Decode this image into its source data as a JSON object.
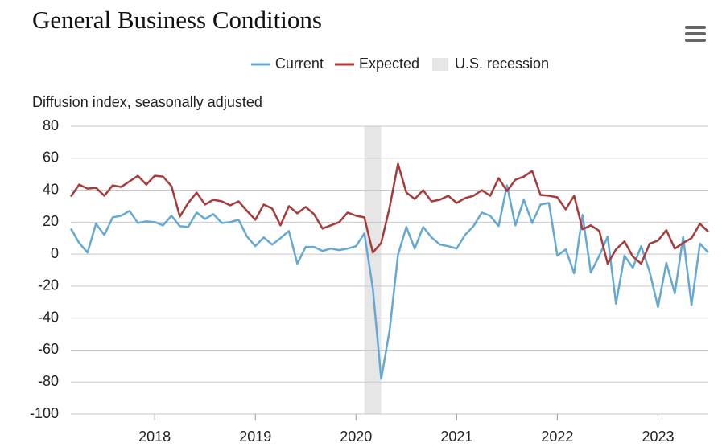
{
  "chart_data": {
    "type": "line",
    "title": "General Business Conditions",
    "y_label": "Diffusion index, seasonally adjusted",
    "x": [
      2017.167,
      2017.25,
      2017.333,
      2017.417,
      2017.5,
      2017.583,
      2017.667,
      2017.75,
      2017.833,
      2017.917,
      2018.0,
      2018.083,
      2018.167,
      2018.25,
      2018.333,
      2018.417,
      2018.5,
      2018.583,
      2018.667,
      2018.75,
      2018.833,
      2018.917,
      2019.0,
      2019.083,
      2019.167,
      2019.25,
      2019.333,
      2019.417,
      2019.5,
      2019.583,
      2019.667,
      2019.75,
      2019.833,
      2019.917,
      2020.0,
      2020.083,
      2020.167,
      2020.25,
      2020.333,
      2020.417,
      2020.5,
      2020.583,
      2020.667,
      2020.75,
      2020.833,
      2020.917,
      2021.0,
      2021.083,
      2021.167,
      2021.25,
      2021.333,
      2021.417,
      2021.5,
      2021.583,
      2021.667,
      2021.75,
      2021.833,
      2021.917,
      2022.0,
      2022.083,
      2022.167,
      2022.25,
      2022.333,
      2022.417,
      2022.5,
      2022.583,
      2022.667,
      2022.75,
      2022.833,
      2022.917,
      2023.0,
      2023.083,
      2023.167,
      2023.25,
      2023.333,
      2023.417,
      2023.5
    ],
    "series": [
      {
        "name": "Current",
        "color": "#64a9d4",
        "values": [
          16,
          7,
          1,
          19,
          12,
          23,
          24,
          27,
          19.5,
          20.5,
          20,
          18,
          24,
          17.5,
          17,
          26,
          22,
          25,
          19.5,
          20,
          21.5,
          11,
          5,
          10.5,
          6,
          10,
          14.5,
          -6,
          4.5,
          4.5,
          2,
          3.5,
          2.5,
          3.5,
          5,
          13,
          -21.5,
          -78,
          -48,
          -0.5,
          17,
          3.5,
          17,
          10.5,
          6,
          5,
          3.5,
          12,
          17.5,
          26,
          24,
          17.5,
          43,
          18,
          34,
          19.5,
          31,
          32,
          -1,
          3,
          -12,
          24.5,
          -11.5,
          -1,
          11,
          -31,
          -1,
          -8.5,
          5,
          -11,
          -33,
          -5.5,
          -24.5,
          10.8,
          -31.8,
          6.6,
          1
        ]
      },
      {
        "name": "Expected",
        "color": "#a83a3a",
        "values": [
          36,
          43.5,
          41,
          41.5,
          36.5,
          43,
          42,
          45.5,
          49,
          43.5,
          49,
          48.5,
          42.5,
          23.5,
          32,
          38.5,
          31,
          34,
          33,
          30.5,
          33,
          27,
          21.5,
          31,
          28.5,
          18,
          30,
          25.5,
          29.5,
          25,
          16,
          18,
          20,
          26,
          24,
          23,
          1,
          7,
          29,
          56.5,
          38.5,
          34.5,
          40,
          33,
          34,
          36.5,
          32,
          35,
          36.5,
          40,
          36.5,
          47.5,
          39.5,
          46.5,
          48.5,
          52,
          37,
          36.5,
          35.5,
          28,
          36.5,
          15.5,
          18,
          14.5,
          -6,
          3,
          8,
          -1.5,
          -6,
          6.5,
          8.5,
          15,
          3.5,
          7,
          10,
          19,
          14
        ]
      }
    ],
    "recession": {
      "name": "U.S. recession",
      "color": "#e6e6e6",
      "x": [
        2020.083,
        2020.25
      ]
    },
    "xlim": [
      2017.167,
      2023.5
    ],
    "xticks": [
      2018,
      2019,
      2020,
      2021,
      2022,
      2023
    ],
    "ylim": [
      -100,
      80
    ],
    "yticks": [
      -100,
      -80,
      -60,
      -40,
      -20,
      0,
      20,
      40,
      60,
      80
    ],
    "grid": true,
    "legend": "top"
  }
}
